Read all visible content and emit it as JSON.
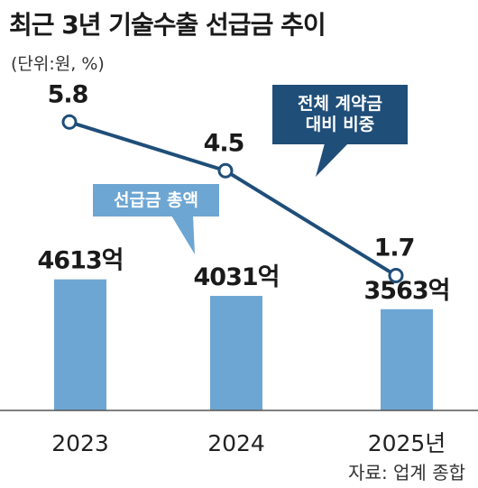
{
  "title": "최근 3년 기술수출 선급금 추이",
  "unit_note": "(단위:원, %)",
  "source": "자료: 업계 종합",
  "colors": {
    "bar": "#6ea6d3",
    "line": "#1f4e79",
    "bar_callout": "#6ea6d3",
    "line_callout": "#1f4e79",
    "axis": "#555555"
  },
  "chart_data": {
    "type": "bar",
    "categories": [
      "2023",
      "2024",
      "2025년"
    ],
    "series": [
      {
        "name": "선급금 총액",
        "type": "bar",
        "values": [
          4613,
          4031,
          3563
        ],
        "value_labels": [
          "4613억",
          "4031억",
          "3563억"
        ]
      },
      {
        "name": "전체 계약금 대비 비중",
        "type": "line",
        "values": [
          5.8,
          4.5,
          1.7
        ],
        "value_labels": [
          "5.8",
          "4.5",
          "1.7"
        ]
      }
    ],
    "callouts": {
      "bar": "선급금 총액",
      "line": [
        "전체 계약금",
        "대비 비중"
      ]
    }
  }
}
